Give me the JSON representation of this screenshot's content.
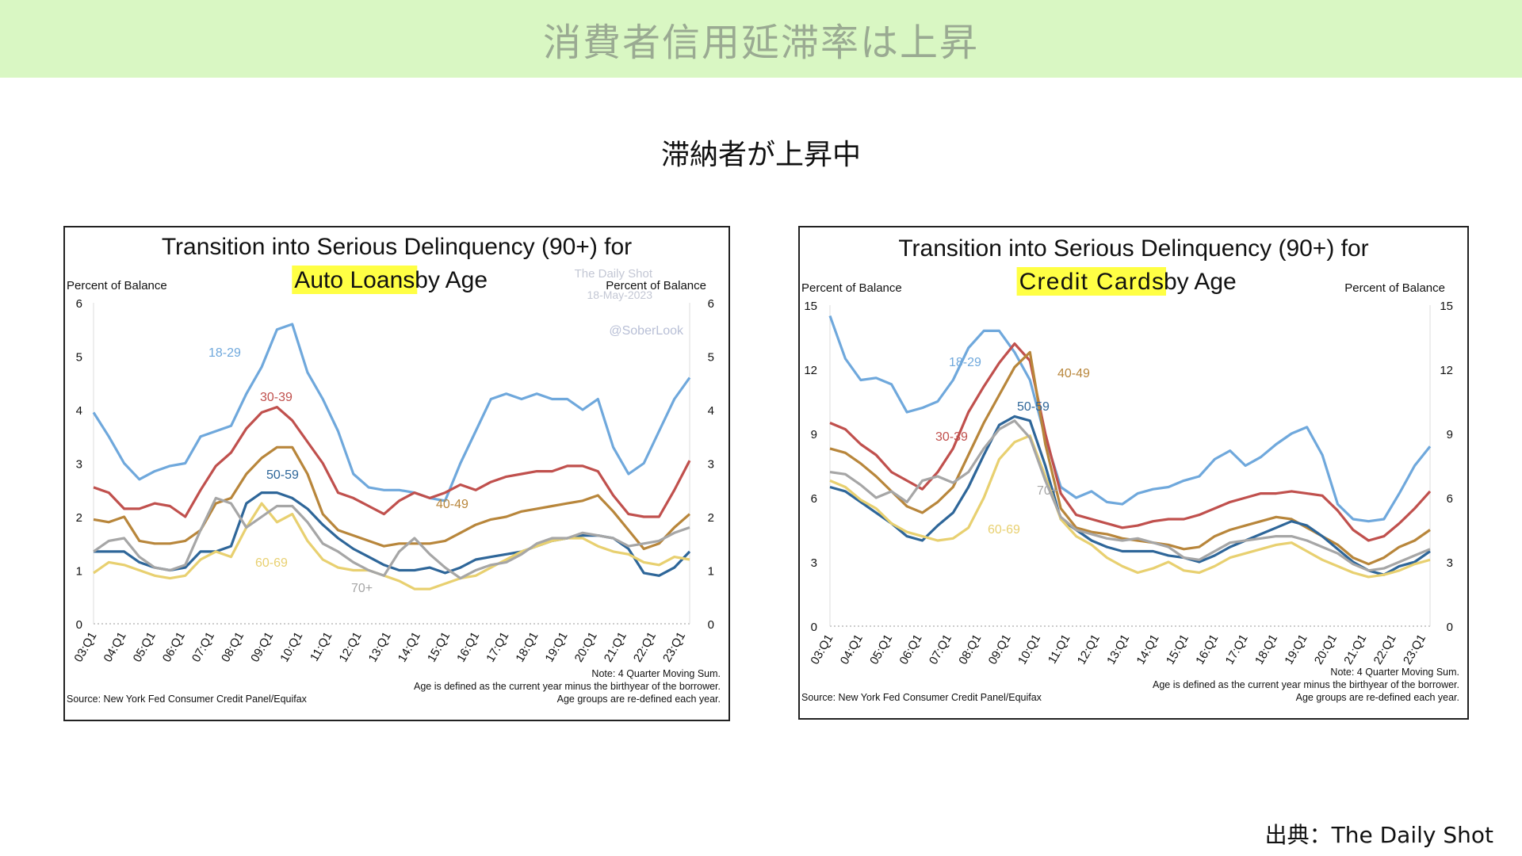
{
  "page": {
    "banner_title": "消費者信用延滞率は上昇",
    "subtitle": "滞納者が上昇中",
    "source": "出典：The Daily Shot"
  },
  "chart_data": [
    {
      "type": "line",
      "title_line1": "Transition into Serious Delinquency (90+) for",
      "title_highlight": "Auto Loans",
      "title_suffix": " by Age",
      "ylabel_left": "Percent of Balance",
      "ylabel_right": "Percent of Balance",
      "ylim": [
        0,
        6
      ],
      "yticks": [
        0,
        1,
        2,
        3,
        4,
        5,
        6
      ],
      "x_start": 2003.0,
      "x_end": 2023.25,
      "xtick_labels": [
        "03:Q1",
        "04:Q1",
        "05:Q1",
        "06:Q1",
        "07:Q1",
        "08:Q1",
        "09:Q1",
        "10:Q1",
        "11:Q1",
        "12:Q1",
        "13:Q1",
        "14:Q1",
        "15:Q1",
        "16:Q1",
        "17:Q1",
        "18:Q1",
        "19:Q1",
        "20:Q1",
        "21:Q1",
        "22:Q1",
        "23:Q1"
      ],
      "watermark": [
        "The Daily Shot",
        "Percent of Balance",
        "18-May-2023",
        "@SoberLook"
      ],
      "notes": [
        "Note: 4 Quarter Moving Sum.",
        "Age is defined as the current year minus the birthyear of the borrower.",
        "Age groups are re-defined each year."
      ],
      "source": "Source: New York Fed Consumer Credit Panel/Equifax",
      "highlight_color": "#ffff44",
      "series": [
        {
          "name": "18-29",
          "color": "#6fa8dc",
          "values": [
            3.95,
            3.5,
            3.0,
            2.7,
            2.85,
            2.95,
            3.0,
            3.5,
            3.6,
            3.7,
            4.3,
            4.8,
            5.5,
            5.6,
            4.7,
            4.2,
            3.6,
            2.8,
            2.55,
            2.5,
            2.5,
            2.45,
            2.35,
            2.3,
            3.0,
            3.6,
            4.2,
            4.3,
            4.2,
            4.3,
            4.2,
            4.2,
            4.0,
            4.2,
            3.3,
            2.8,
            3.0,
            3.6,
            4.2,
            4.6
          ]
        },
        {
          "name": "30-39",
          "color": "#c0504d",
          "values": [
            2.55,
            2.45,
            2.15,
            2.15,
            2.25,
            2.2,
            2.0,
            2.5,
            2.95,
            3.2,
            3.65,
            3.95,
            4.05,
            3.8,
            3.4,
            3.0,
            2.45,
            2.35,
            2.2,
            2.05,
            2.3,
            2.45,
            2.35,
            2.45,
            2.6,
            2.5,
            2.65,
            2.75,
            2.8,
            2.85,
            2.85,
            2.95,
            2.95,
            2.85,
            2.4,
            2.05,
            2.0,
            2.0,
            2.5,
            3.05
          ]
        },
        {
          "name": "40-49",
          "color": "#b8863b",
          "values": [
            1.95,
            1.9,
            2.0,
            1.55,
            1.5,
            1.5,
            1.55,
            1.75,
            2.25,
            2.35,
            2.8,
            3.1,
            3.3,
            3.3,
            2.8,
            2.05,
            1.75,
            1.65,
            1.55,
            1.45,
            1.5,
            1.5,
            1.5,
            1.55,
            1.7,
            1.85,
            1.95,
            2.0,
            2.1,
            2.15,
            2.2,
            2.25,
            2.3,
            2.4,
            2.1,
            1.75,
            1.4,
            1.5,
            1.8,
            2.05
          ]
        },
        {
          "name": "50-59",
          "color": "#2e6699",
          "values": [
            1.35,
            1.35,
            1.35,
            1.15,
            1.05,
            1.0,
            1.05,
            1.35,
            1.35,
            1.45,
            2.25,
            2.45,
            2.45,
            2.35,
            2.15,
            1.85,
            1.6,
            1.4,
            1.25,
            1.1,
            1.0,
            1.0,
            1.05,
            0.95,
            1.05,
            1.2,
            1.25,
            1.3,
            1.35,
            1.45,
            1.55,
            1.6,
            1.65,
            1.65,
            1.6,
            1.4,
            0.95,
            0.9,
            1.05,
            1.35
          ]
        },
        {
          "name": "60-69",
          "color": "#e8d070",
          "values": [
            0.95,
            1.15,
            1.1,
            1.0,
            0.9,
            0.85,
            0.9,
            1.2,
            1.35,
            1.25,
            1.8,
            2.25,
            1.9,
            2.05,
            1.55,
            1.2,
            1.05,
            1.0,
            1.0,
            0.9,
            0.8,
            0.65,
            0.65,
            0.75,
            0.85,
            0.9,
            1.05,
            1.2,
            1.35,
            1.45,
            1.55,
            1.6,
            1.6,
            1.45,
            1.35,
            1.3,
            1.15,
            1.1,
            1.25,
            1.2
          ]
        },
        {
          "name": "70+",
          "color": "#a6a6a6",
          "values": [
            1.35,
            1.55,
            1.6,
            1.25,
            1.05,
            1.0,
            1.1,
            1.75,
            2.35,
            2.25,
            1.8,
            2.0,
            2.2,
            2.2,
            1.9,
            1.5,
            1.35,
            1.15,
            1.0,
            0.9,
            1.35,
            1.6,
            1.3,
            1.05,
            0.85,
            1.0,
            1.1,
            1.15,
            1.3,
            1.5,
            1.6,
            1.6,
            1.7,
            1.65,
            1.6,
            1.45,
            1.5,
            1.55,
            1.7,
            1.8
          ]
        }
      ]
    },
    {
      "type": "line",
      "title_line1": "Transition into Serious Delinquency (90+) for",
      "title_highlight": "Credit Cards",
      "title_suffix": " by Age",
      "ylabel_left": "Percent of Balance",
      "ylabel_right": "Percent of Balance",
      "ylim": [
        0,
        15
      ],
      "yticks": [
        0,
        3,
        6,
        9,
        12,
        15
      ],
      "x_start": 2003.0,
      "x_end": 2023.25,
      "xtick_labels": [
        "03:Q1",
        "04:Q1",
        "05:Q1",
        "06:Q1",
        "07:Q1",
        "08:Q1",
        "09:Q1",
        "10:Q1",
        "11:Q1",
        "12:Q1",
        "13:Q1",
        "14:Q1",
        "15:Q1",
        "16:Q1",
        "17:Q1",
        "18:Q1",
        "19:Q1",
        "20:Q1",
        "21:Q1",
        "22:Q1",
        "23:Q1"
      ],
      "notes": [
        "Note: 4 Quarter Moving Sum.",
        "Age is defined as the current year minus the birthyear of the borrower.",
        "Age groups are re-defined each year."
      ],
      "source": "Source: New York Fed Consumer Credit Panel/Equifax",
      "highlight_color": "#ffff44",
      "series": [
        {
          "name": "18-29",
          "color": "#6fa8dc",
          "values": [
            14.5,
            12.5,
            11.5,
            11.6,
            11.3,
            10.0,
            10.2,
            10.5,
            11.5,
            13.0,
            13.8,
            13.8,
            12.8,
            11.5,
            8.8,
            6.5,
            6.0,
            6.3,
            5.8,
            5.7,
            6.2,
            6.4,
            6.5,
            6.8,
            7.0,
            7.8,
            8.2,
            7.5,
            7.9,
            8.5,
            9.0,
            9.3,
            8.0,
            5.7,
            5.0,
            4.9,
            5.0,
            6.2,
            7.5,
            8.4
          ]
        },
        {
          "name": "30-39",
          "color": "#c0504d",
          "values": [
            9.5,
            9.2,
            8.5,
            8.0,
            7.2,
            6.8,
            6.4,
            7.2,
            8.3,
            10.0,
            11.2,
            12.3,
            13.2,
            12.4,
            9.0,
            6.2,
            5.2,
            5.0,
            4.8,
            4.6,
            4.7,
            4.9,
            5.0,
            5.0,
            5.2,
            5.5,
            5.8,
            6.0,
            6.2,
            6.2,
            6.3,
            6.2,
            6.1,
            5.4,
            4.5,
            4.0,
            4.2,
            4.8,
            5.5,
            6.3
          ]
        },
        {
          "name": "40-49",
          "color": "#b8863b",
          "values": [
            8.3,
            8.1,
            7.6,
            7.0,
            6.3,
            5.6,
            5.3,
            5.8,
            6.5,
            8.0,
            9.5,
            10.8,
            12.1,
            12.8,
            8.5,
            5.5,
            4.6,
            4.4,
            4.3,
            4.1,
            4.0,
            3.9,
            3.8,
            3.6,
            3.7,
            4.2,
            4.5,
            4.7,
            4.9,
            5.1,
            5.0,
            4.6,
            4.2,
            3.8,
            3.2,
            2.9,
            3.2,
            3.7,
            4.0,
            4.5
          ]
        },
        {
          "name": "50-59",
          "color": "#2e6699",
          "values": [
            6.5,
            6.3,
            5.8,
            5.3,
            4.8,
            4.2,
            4.0,
            4.7,
            5.3,
            6.5,
            8.0,
            9.4,
            9.8,
            9.6,
            7.5,
            5.0,
            4.5,
            4.0,
            3.7,
            3.5,
            3.5,
            3.5,
            3.3,
            3.2,
            3.0,
            3.3,
            3.7,
            4.0,
            4.3,
            4.6,
            4.9,
            4.7,
            4.2,
            3.6,
            3.0,
            2.6,
            2.4,
            2.8,
            3.0,
            3.5
          ]
        },
        {
          "name": "60-69",
          "color": "#e8d070",
          "values": [
            6.8,
            6.5,
            5.9,
            5.5,
            4.8,
            4.4,
            4.2,
            4.0,
            4.1,
            4.6,
            6.0,
            7.8,
            8.6,
            8.9,
            7.0,
            5.0,
            4.2,
            3.8,
            3.2,
            2.8,
            2.5,
            2.7,
            3.0,
            2.6,
            2.5,
            2.8,
            3.2,
            3.4,
            3.6,
            3.8,
            3.9,
            3.5,
            3.1,
            2.8,
            2.5,
            2.3,
            2.4,
            2.6,
            2.9,
            3.1
          ]
        },
        {
          "name": "70+",
          "color": "#a6a6a6",
          "values": [
            7.2,
            7.1,
            6.6,
            6.0,
            6.3,
            5.8,
            6.8,
            7.0,
            6.7,
            7.2,
            8.3,
            9.2,
            9.6,
            8.8,
            6.8,
            5.1,
            4.5,
            4.3,
            4.1,
            4.0,
            4.1,
            3.9,
            3.7,
            3.2,
            3.1,
            3.5,
            3.9,
            4.0,
            4.1,
            4.2,
            4.2,
            4.0,
            3.7,
            3.4,
            2.9,
            2.6,
            2.7,
            3.0,
            3.3,
            3.6
          ]
        }
      ]
    }
  ]
}
